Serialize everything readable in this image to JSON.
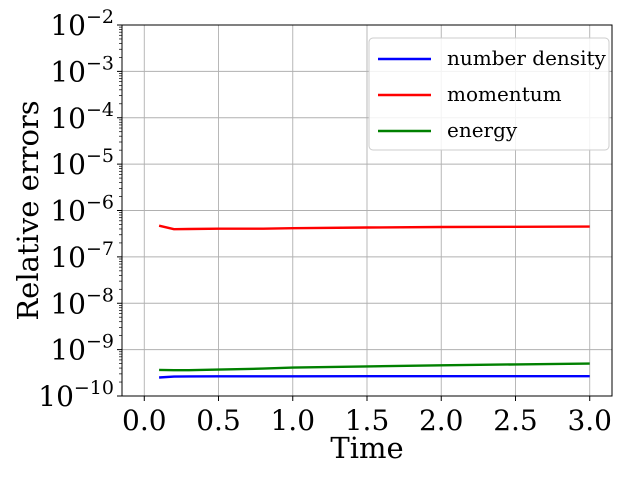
{
  "chart_data": {
    "type": "line",
    "title": "",
    "xlabel": "Time",
    "ylabel": "Relative errors",
    "xlim": [
      -0.15,
      3.15
    ],
    "ylim": [
      1e-10,
      0.01
    ],
    "yscale": "log",
    "grid": true,
    "legend_position": "top-right",
    "x_ticks": [
      {
        "value": 0.0,
        "label": "0.0"
      },
      {
        "value": 0.5,
        "label": "0.5"
      },
      {
        "value": 1.0,
        "label": "1.0"
      },
      {
        "value": 1.5,
        "label": "1.5"
      },
      {
        "value": 2.0,
        "label": "2.0"
      },
      {
        "value": 2.5,
        "label": "2.5"
      },
      {
        "value": 3.0,
        "label": "3.0"
      }
    ],
    "y_ticks": [
      {
        "value": 1e-10,
        "base": "10",
        "exp": "−10"
      },
      {
        "value": 1e-09,
        "base": "10",
        "exp": "−9"
      },
      {
        "value": 1e-08,
        "base": "10",
        "exp": "−8"
      },
      {
        "value": 1e-07,
        "base": "10",
        "exp": "−7"
      },
      {
        "value": 1e-06,
        "base": "10",
        "exp": "−6"
      },
      {
        "value": 1e-05,
        "base": "10",
        "exp": "−5"
      },
      {
        "value": 0.0001,
        "base": "10",
        "exp": "−4"
      },
      {
        "value": 0.001,
        "base": "10",
        "exp": "−3"
      },
      {
        "value": 0.01,
        "base": "10",
        "exp": "−2"
      }
    ],
    "series": [
      {
        "name": "number density",
        "color": "#0000ff",
        "x": [
          0.1,
          0.2,
          0.3,
          0.5,
          0.8,
          1.0,
          1.5,
          2.0,
          2.5,
          3.0
        ],
        "y": [
          2.5e-10,
          2.62e-10,
          2.65e-10,
          2.66e-10,
          2.66e-10,
          2.66e-10,
          2.67e-10,
          2.67e-10,
          2.67e-10,
          2.67e-10
        ]
      },
      {
        "name": "momentum",
        "color": "#ff0000",
        "x": [
          0.1,
          0.2,
          0.3,
          0.5,
          0.8,
          1.0,
          1.5,
          2.0,
          2.5,
          3.0
        ],
        "y": [
          4.7e-07,
          3.95e-07,
          4e-07,
          4.05e-07,
          4.05e-07,
          4.15e-07,
          4.3e-07,
          4.4e-07,
          4.45e-07,
          4.5e-07
        ]
      },
      {
        "name": "energy",
        "color": "#008000",
        "x": [
          0.1,
          0.2,
          0.3,
          0.5,
          0.8,
          1.0,
          1.5,
          2.0,
          2.5,
          3.0
        ],
        "y": [
          3.65e-10,
          3.6e-10,
          3.6e-10,
          3.7e-10,
          3.9e-10,
          4.1e-10,
          4.35e-10,
          4.6e-10,
          4.8e-10,
          5e-10
        ]
      }
    ]
  }
}
